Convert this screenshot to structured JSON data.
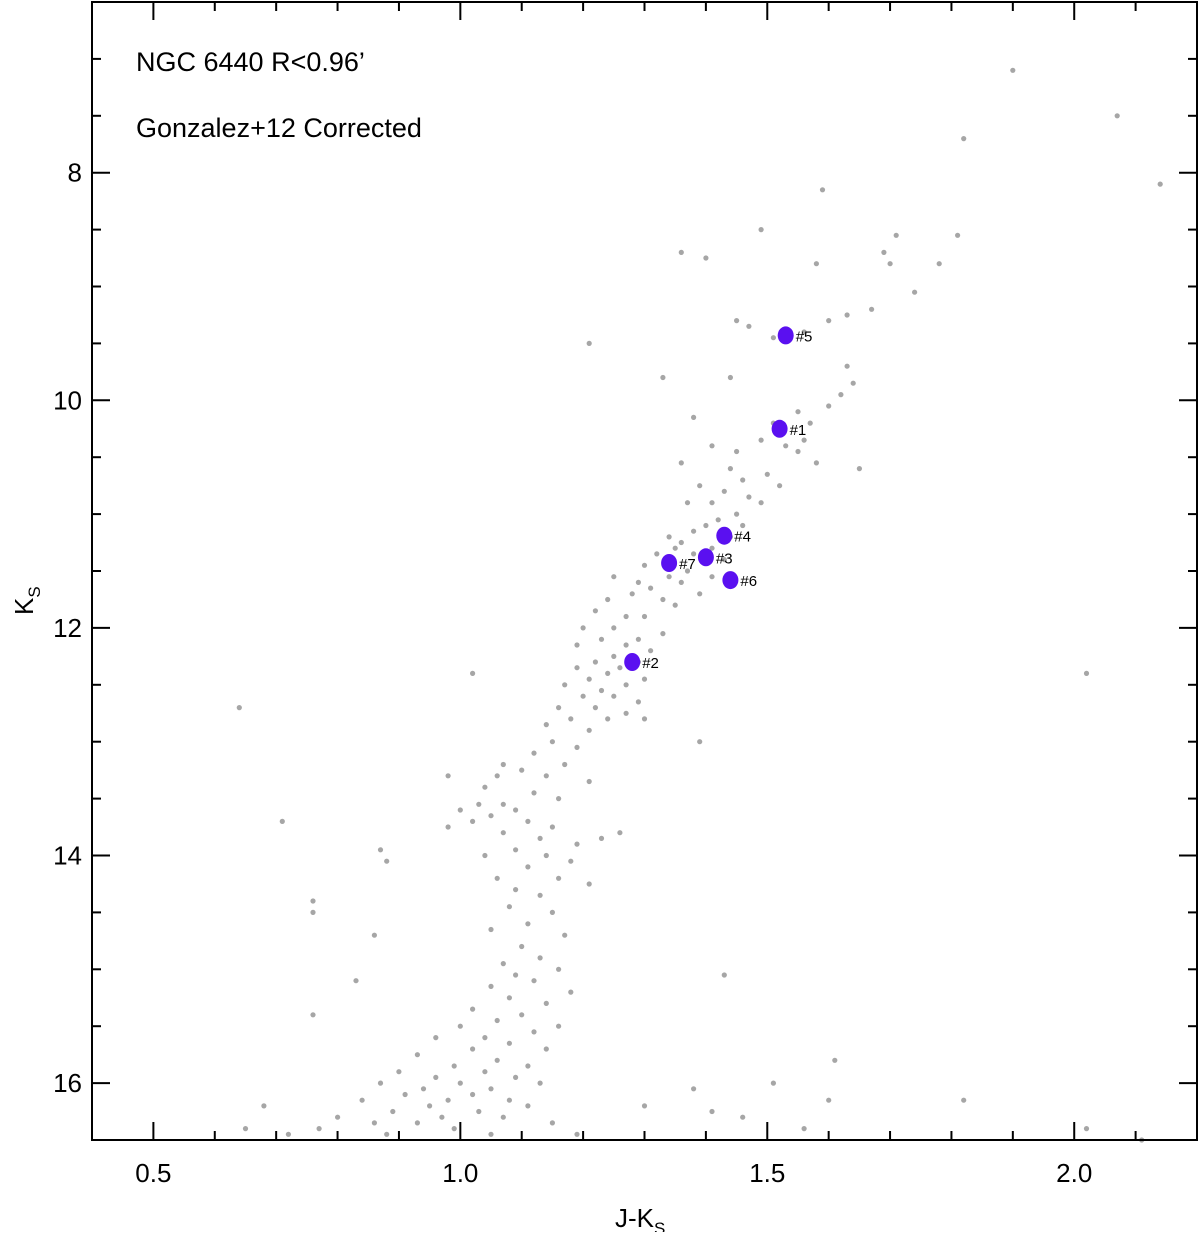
{
  "chart_data": {
    "type": "scatter",
    "title_lines": [
      "NGC 6440 R<0.96’",
      "Gonzalez+12 Corrected"
    ],
    "xlabel_main": "J-K",
    "xlabel_sub": "S",
    "ylabel_main": "K",
    "ylabel_sub": "S",
    "xlim": [
      0.4,
      2.2
    ],
    "ylim": [
      16.5,
      6.5
    ],
    "y_inverted": true,
    "x_ticks": [
      0.5,
      1.0,
      1.5,
      2.0
    ],
    "x_tick_labels": [
      "0.5",
      "1.0",
      "1.5",
      "2.0"
    ],
    "y_ticks": [
      8,
      10,
      12,
      14,
      16
    ],
    "y_tick_labels": [
      "8",
      "10",
      "12",
      "14",
      "16"
    ],
    "grid": false,
    "colors": {
      "field_star": "#a6a6a6",
      "highlight_star": "#5a10f0"
    },
    "series": [
      {
        "role": "cluster-stars",
        "sampled": true,
        "points": [
          [
            1.9,
            7.1
          ],
          [
            2.07,
            7.5
          ],
          [
            1.82,
            7.7
          ],
          [
            2.14,
            8.1
          ],
          [
            1.59,
            8.15
          ],
          [
            1.49,
            8.5
          ],
          [
            1.71,
            8.55
          ],
          [
            1.81,
            8.55
          ],
          [
            1.36,
            8.7
          ],
          [
            1.4,
            8.75
          ],
          [
            1.58,
            8.8
          ],
          [
            1.69,
            8.7
          ],
          [
            1.7,
            8.8
          ],
          [
            1.78,
            8.8
          ],
          [
            1.74,
            9.05
          ],
          [
            1.67,
            9.2
          ],
          [
            1.63,
            9.25
          ],
          [
            1.6,
            9.3
          ],
          [
            1.45,
            9.3
          ],
          [
            1.47,
            9.35
          ],
          [
            1.56,
            9.4
          ],
          [
            1.51,
            9.45
          ],
          [
            1.21,
            9.5
          ],
          [
            1.63,
            9.7
          ],
          [
            1.33,
            9.8
          ],
          [
            1.44,
            9.8
          ],
          [
            1.64,
            9.85
          ],
          [
            1.62,
            9.95
          ],
          [
            1.6,
            10.05
          ],
          [
            1.55,
            10.1
          ],
          [
            1.57,
            10.2
          ],
          [
            1.38,
            10.15
          ],
          [
            1.51,
            10.2
          ],
          [
            1.56,
            10.35
          ],
          [
            1.53,
            10.4
          ],
          [
            1.49,
            10.35
          ],
          [
            1.41,
            10.4
          ],
          [
            1.45,
            10.45
          ],
          [
            1.55,
            10.45
          ],
          [
            1.58,
            10.55
          ],
          [
            1.65,
            10.6
          ],
          [
            1.36,
            10.55
          ],
          [
            1.44,
            10.6
          ],
          [
            1.5,
            10.65
          ],
          [
            1.46,
            10.7
          ],
          [
            1.52,
            10.75
          ],
          [
            1.39,
            10.75
          ],
          [
            1.43,
            10.8
          ],
          [
            1.47,
            10.85
          ],
          [
            1.41,
            10.9
          ],
          [
            1.49,
            10.9
          ],
          [
            1.37,
            10.9
          ],
          [
            1.45,
            11.0
          ],
          [
            1.42,
            11.05
          ],
          [
            1.46,
            11.1
          ],
          [
            1.4,
            11.1
          ],
          [
            1.38,
            11.15
          ],
          [
            1.44,
            11.2
          ],
          [
            1.36,
            11.25
          ],
          [
            1.34,
            11.2
          ],
          [
            1.41,
            11.3
          ],
          [
            1.38,
            11.35
          ],
          [
            1.32,
            11.35
          ],
          [
            1.35,
            11.3
          ],
          [
            1.43,
            11.4
          ],
          [
            1.3,
            11.45
          ],
          [
            1.37,
            11.5
          ],
          [
            1.34,
            11.55
          ],
          [
            1.41,
            11.55
          ],
          [
            1.29,
            11.6
          ],
          [
            1.25,
            11.55
          ],
          [
            1.36,
            11.6
          ],
          [
            1.31,
            11.65
          ],
          [
            1.39,
            11.7
          ],
          [
            1.28,
            11.7
          ],
          [
            1.24,
            11.75
          ],
          [
            1.33,
            11.75
          ],
          [
            1.35,
            11.8
          ],
          [
            1.22,
            11.85
          ],
          [
            1.27,
            11.9
          ],
          [
            1.3,
            11.9
          ],
          [
            1.2,
            12.0
          ],
          [
            1.25,
            12.0
          ],
          [
            1.33,
            12.05
          ],
          [
            1.29,
            12.1
          ],
          [
            1.23,
            12.1
          ],
          [
            1.19,
            12.15
          ],
          [
            1.27,
            12.15
          ],
          [
            1.31,
            12.2
          ],
          [
            1.25,
            12.25
          ],
          [
            1.22,
            12.3
          ],
          [
            1.29,
            12.3
          ],
          [
            1.26,
            12.35
          ],
          [
            1.19,
            12.35
          ],
          [
            1.24,
            12.4
          ],
          [
            1.3,
            12.45
          ],
          [
            1.21,
            12.45
          ],
          [
            1.27,
            12.5
          ],
          [
            1.17,
            12.5
          ],
          [
            1.23,
            12.55
          ],
          [
            1.25,
            12.6
          ],
          [
            1.2,
            12.6
          ],
          [
            1.29,
            12.65
          ],
          [
            1.16,
            12.7
          ],
          [
            1.22,
            12.7
          ],
          [
            1.27,
            12.75
          ],
          [
            1.18,
            12.8
          ],
          [
            1.24,
            12.8
          ],
          [
            1.14,
            12.85
          ],
          [
            1.21,
            12.9
          ],
          [
            1.3,
            12.8
          ],
          [
            1.02,
            12.4
          ],
          [
            2.02,
            12.4
          ],
          [
            0.64,
            12.7
          ],
          [
            1.39,
            13.0
          ],
          [
            1.15,
            13.0
          ],
          [
            1.19,
            13.05
          ],
          [
            1.12,
            13.1
          ],
          [
            1.07,
            13.2
          ],
          [
            1.17,
            13.2
          ],
          [
            1.1,
            13.25
          ],
          [
            1.06,
            13.3
          ],
          [
            1.14,
            13.3
          ],
          [
            1.21,
            13.35
          ],
          [
            0.98,
            13.3
          ],
          [
            1.04,
            13.4
          ],
          [
            1.12,
            13.45
          ],
          [
            1.16,
            13.5
          ],
          [
            1.07,
            13.55
          ],
          [
            1.03,
            13.55
          ],
          [
            1.0,
            13.6
          ],
          [
            1.09,
            13.6
          ],
          [
            1.05,
            13.65
          ],
          [
            1.11,
            13.7
          ],
          [
            1.02,
            13.7
          ],
          [
            0.98,
            13.75
          ],
          [
            1.15,
            13.75
          ],
          [
            1.07,
            13.8
          ],
          [
            1.13,
            13.85
          ],
          [
            1.19,
            13.9
          ],
          [
            1.23,
            13.85
          ],
          [
            1.26,
            13.8
          ],
          [
            1.09,
            13.95
          ],
          [
            1.04,
            14.0
          ],
          [
            1.14,
            14.0
          ],
          [
            1.18,
            14.05
          ],
          [
            1.11,
            14.1
          ],
          [
            1.06,
            14.2
          ],
          [
            1.16,
            14.2
          ],
          [
            1.21,
            14.25
          ],
          [
            1.09,
            14.3
          ],
          [
            1.13,
            14.35
          ],
          [
            1.08,
            14.45
          ],
          [
            1.15,
            14.5
          ],
          [
            1.11,
            14.6
          ],
          [
            1.05,
            14.65
          ],
          [
            1.17,
            14.7
          ],
          [
            1.1,
            14.8
          ],
          [
            1.13,
            14.9
          ],
          [
            1.07,
            14.95
          ],
          [
            1.16,
            15.0
          ],
          [
            1.09,
            15.05
          ],
          [
            1.12,
            15.1
          ],
          [
            1.05,
            15.15
          ],
          [
            1.18,
            15.2
          ],
          [
            1.08,
            15.25
          ],
          [
            1.14,
            15.3
          ],
          [
            1.02,
            15.35
          ],
          [
            1.1,
            15.4
          ],
          [
            1.06,
            15.45
          ],
          [
            1.16,
            15.5
          ],
          [
            1.0,
            15.5
          ],
          [
            1.12,
            15.55
          ],
          [
            1.04,
            15.6
          ],
          [
            0.96,
            15.6
          ],
          [
            1.08,
            15.65
          ],
          [
            1.14,
            15.7
          ],
          [
            1.02,
            15.7
          ],
          [
            0.93,
            15.75
          ],
          [
            1.06,
            15.8
          ],
          [
            0.99,
            15.85
          ],
          [
            1.11,
            15.85
          ],
          [
            0.9,
            15.9
          ],
          [
            1.04,
            15.9
          ],
          [
            0.96,
            15.95
          ],
          [
            1.09,
            15.95
          ],
          [
            1.0,
            16.0
          ],
          [
            0.87,
            16.0
          ],
          [
            1.13,
            16.0
          ],
          [
            0.94,
            16.05
          ],
          [
            1.05,
            16.05
          ],
          [
            0.91,
            16.1
          ],
          [
            1.02,
            16.1
          ],
          [
            0.98,
            16.15
          ],
          [
            1.08,
            16.15
          ],
          [
            0.84,
            16.15
          ],
          [
            0.95,
            16.2
          ],
          [
            1.11,
            16.2
          ],
          [
            0.89,
            16.25
          ],
          [
            1.03,
            16.25
          ],
          [
            0.8,
            16.3
          ],
          [
            0.97,
            16.3
          ],
          [
            1.07,
            16.3
          ],
          [
            0.86,
            16.35
          ],
          [
            0.93,
            16.35
          ],
          [
            1.15,
            16.35
          ],
          [
            0.77,
            16.4
          ],
          [
            0.99,
            16.4
          ],
          [
            0.88,
            16.45
          ],
          [
            1.05,
            16.45
          ],
          [
            0.72,
            16.45
          ],
          [
            1.19,
            16.45
          ],
          [
            0.65,
            16.4
          ],
          [
            0.68,
            16.2
          ],
          [
            0.76,
            14.4
          ],
          [
            0.76,
            14.5
          ],
          [
            0.71,
            13.7
          ],
          [
            0.87,
            13.95
          ],
          [
            0.88,
            14.05
          ],
          [
            0.86,
            14.7
          ],
          [
            0.76,
            15.4
          ],
          [
            0.83,
            15.1
          ],
          [
            1.61,
            15.8
          ],
          [
            1.43,
            15.05
          ],
          [
            1.51,
            16.0
          ],
          [
            1.6,
            16.15
          ],
          [
            1.82,
            16.15
          ],
          [
            2.02,
            16.4
          ],
          [
            2.11,
            16.5
          ],
          [
            1.38,
            16.05
          ],
          [
            1.46,
            16.3
          ],
          [
            1.3,
            16.2
          ],
          [
            1.56,
            16.4
          ],
          [
            1.41,
            16.25
          ]
        ]
      },
      {
        "role": "highlighted-stars",
        "points": [
          [
            1.52,
            10.25,
            "#1"
          ],
          [
            1.28,
            12.3,
            "#2"
          ],
          [
            1.4,
            11.38,
            "#3"
          ],
          [
            1.43,
            11.19,
            "#4"
          ],
          [
            1.53,
            9.43,
            "#5"
          ],
          [
            1.44,
            11.58,
            "#6"
          ],
          [
            1.34,
            11.43,
            "#7"
          ]
        ]
      }
    ]
  }
}
